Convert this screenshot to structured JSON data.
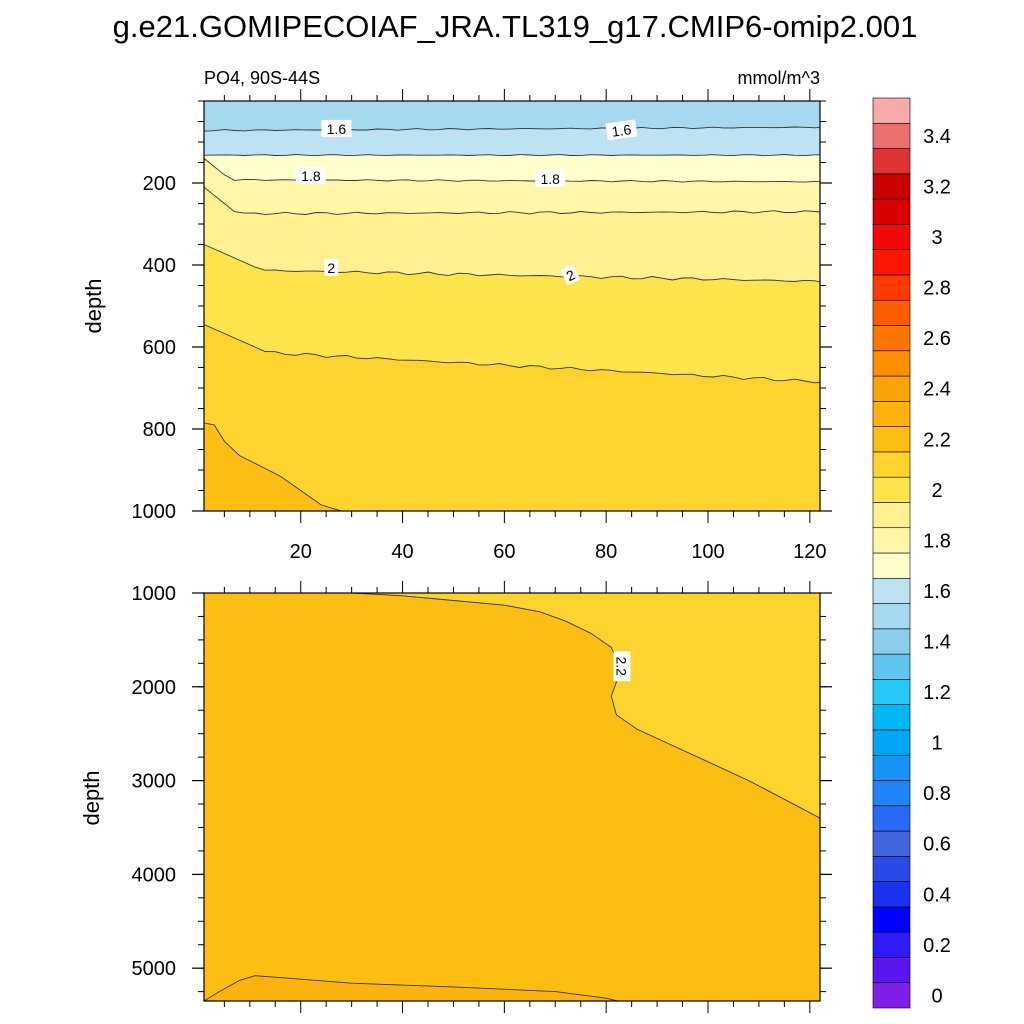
{
  "chart_data": {
    "type": "contour",
    "title": "g.e21.GOMIPECOIAF_JRA.TL319_g17.CMIP6-omip2.001",
    "variable_label": "PO4, 90S-44S",
    "units_label": "mmol/m^3",
    "x": {
      "range": [
        1,
        122
      ],
      "ticks": [
        20,
        40,
        60,
        80,
        100,
        120
      ]
    },
    "panels": [
      {
        "name": "upper",
        "ylabel": "depth",
        "y_range": [
          0,
          1000
        ],
        "y_ticks": [
          200,
          400,
          600,
          800,
          1000
        ],
        "fill_levels": [
          1.5,
          1.6,
          1.7,
          1.8,
          1.9,
          2.0,
          2.1,
          2.2
        ],
        "contour_labels": [
          {
            "text": "1.6",
            "x": 27,
            "y": 68,
            "angle": 0
          },
          {
            "text": "1.6",
            "x": 83,
            "y": 72,
            "angle": -8
          },
          {
            "text": "1.8",
            "x": 22,
            "y": 183,
            "angle": 0
          },
          {
            "text": "1.8",
            "x": 69,
            "y": 190,
            "angle": 0
          },
          {
            "text": "2",
            "x": 26,
            "y": 407,
            "angle": 0
          },
          {
            "text": "2",
            "x": 73,
            "y": 425,
            "angle": -25
          }
        ]
      },
      {
        "name": "lower",
        "ylabel": "depth",
        "y_range": [
          1000,
          5350
        ],
        "y_ticks": [
          1000,
          2000,
          3000,
          4000,
          5000
        ],
        "fill_levels": [
          2.1,
          2.2,
          2.3
        ],
        "contour_labels": [
          {
            "text": "2.2",
            "x": 83,
            "y": 1780,
            "angle": 90
          }
        ]
      }
    ],
    "colorbar": {
      "tick_labels": [
        "0",
        "0.2",
        "0.4",
        "0.6",
        "0.8",
        "1",
        "1.2",
        "1.4",
        "1.6",
        "1.8",
        "2",
        "2.2",
        "2.4",
        "2.6",
        "2.8",
        "3",
        "3.2",
        "3.4"
      ],
      "colors": [
        "#7f1fe8",
        "#5b16f0",
        "#2f1af8",
        "#0000ff",
        "#1c31f0",
        "#2a4ae8",
        "#4165dc",
        "#2b6af6",
        "#1f82f5",
        "#1594f6",
        "#01a6f4",
        "#00b7f5",
        "#26c8f5",
        "#62c5f0",
        "#8ccdec",
        "#a6d9f0",
        "#bde3f2",
        "#ffffcc",
        "#fff6a8",
        "#fff191",
        "#fde34c",
        "#fcd42d",
        "#fdbe14",
        "#fdb20e",
        "#fba30a",
        "#fd8f05",
        "#fe7602",
        "#fe5c02",
        "#fe3a00",
        "#fe1604",
        "#f20a0a",
        "#db0000",
        "#c80000",
        "#dd3333",
        "#eb6f6f",
        "#f7aaaa"
      ]
    }
  }
}
